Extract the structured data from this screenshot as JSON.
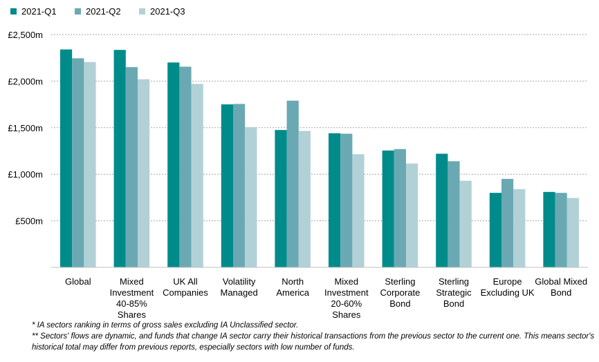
{
  "chart_data": {
    "type": "bar",
    "categories": [
      "Global",
      "Mixed Investment 40-85% Shares",
      "UK All Companies",
      "Volatility Managed",
      "North America",
      "Mixed Investment 20-60% Shares",
      "Sterling Corporate Bond",
      "Sterling Strategic Bond",
      "Europe Excluding UK",
      "Global Mixed Bond"
    ],
    "category_label_lines": [
      [
        "Global"
      ],
      [
        "Mixed",
        "Investment",
        "40-85%",
        "Shares"
      ],
      [
        "UK All",
        "Companies"
      ],
      [
        "Volatility",
        "Managed"
      ],
      [
        "North",
        "America"
      ],
      [
        "Mixed",
        "Investment",
        "20-60%",
        "Shares"
      ],
      [
        "Sterling",
        "Corporate",
        "Bond"
      ],
      [
        "Sterling",
        "Strategic",
        "Bond"
      ],
      [
        "Europe",
        "Excluding UK"
      ],
      [
        "Global Mixed",
        "Bond"
      ]
    ],
    "series": [
      {
        "name": "2021-Q1",
        "color": "#008b8b",
        "values": [
          2340,
          2335,
          2200,
          1750,
          1475,
          1440,
          1255,
          1220,
          800,
          810
        ]
      },
      {
        "name": "2021-Q2",
        "color": "#6aa9b3",
        "values": [
          2245,
          2150,
          2155,
          1755,
          1790,
          1435,
          1270,
          1140,
          950,
          800
        ]
      },
      {
        "name": "2021-Q3",
        "color": "#b2d1d7",
        "values": [
          2205,
          2020,
          1970,
          1505,
          1465,
          1215,
          1115,
          930,
          840,
          745
        ]
      }
    ],
    "yticks": [
      {
        "value": 500,
        "label": "£500m"
      },
      {
        "value": 1000,
        "label": "£1,000m"
      },
      {
        "value": 1500,
        "label": "£1,500m"
      },
      {
        "value": 2000,
        "label": "£2,000m"
      },
      {
        "value": 2500,
        "label": "£2,500m"
      }
    ],
    "ylim": [
      0,
      2500
    ],
    "grid": true,
    "legend_position": "top-left",
    "title": "",
    "xlabel": "",
    "ylabel": ""
  },
  "footnotes": {
    "note1": "* IA sectors ranking in terms of gross sales excluding IA Unclassified sector.",
    "note2": "** Sectors' flows are dynamic, and funds that change IA sector carry their historical transactions from  the previous sector to the current one. This means sector's historical total may differ from previous reports, especially sectors with low number of funds."
  }
}
